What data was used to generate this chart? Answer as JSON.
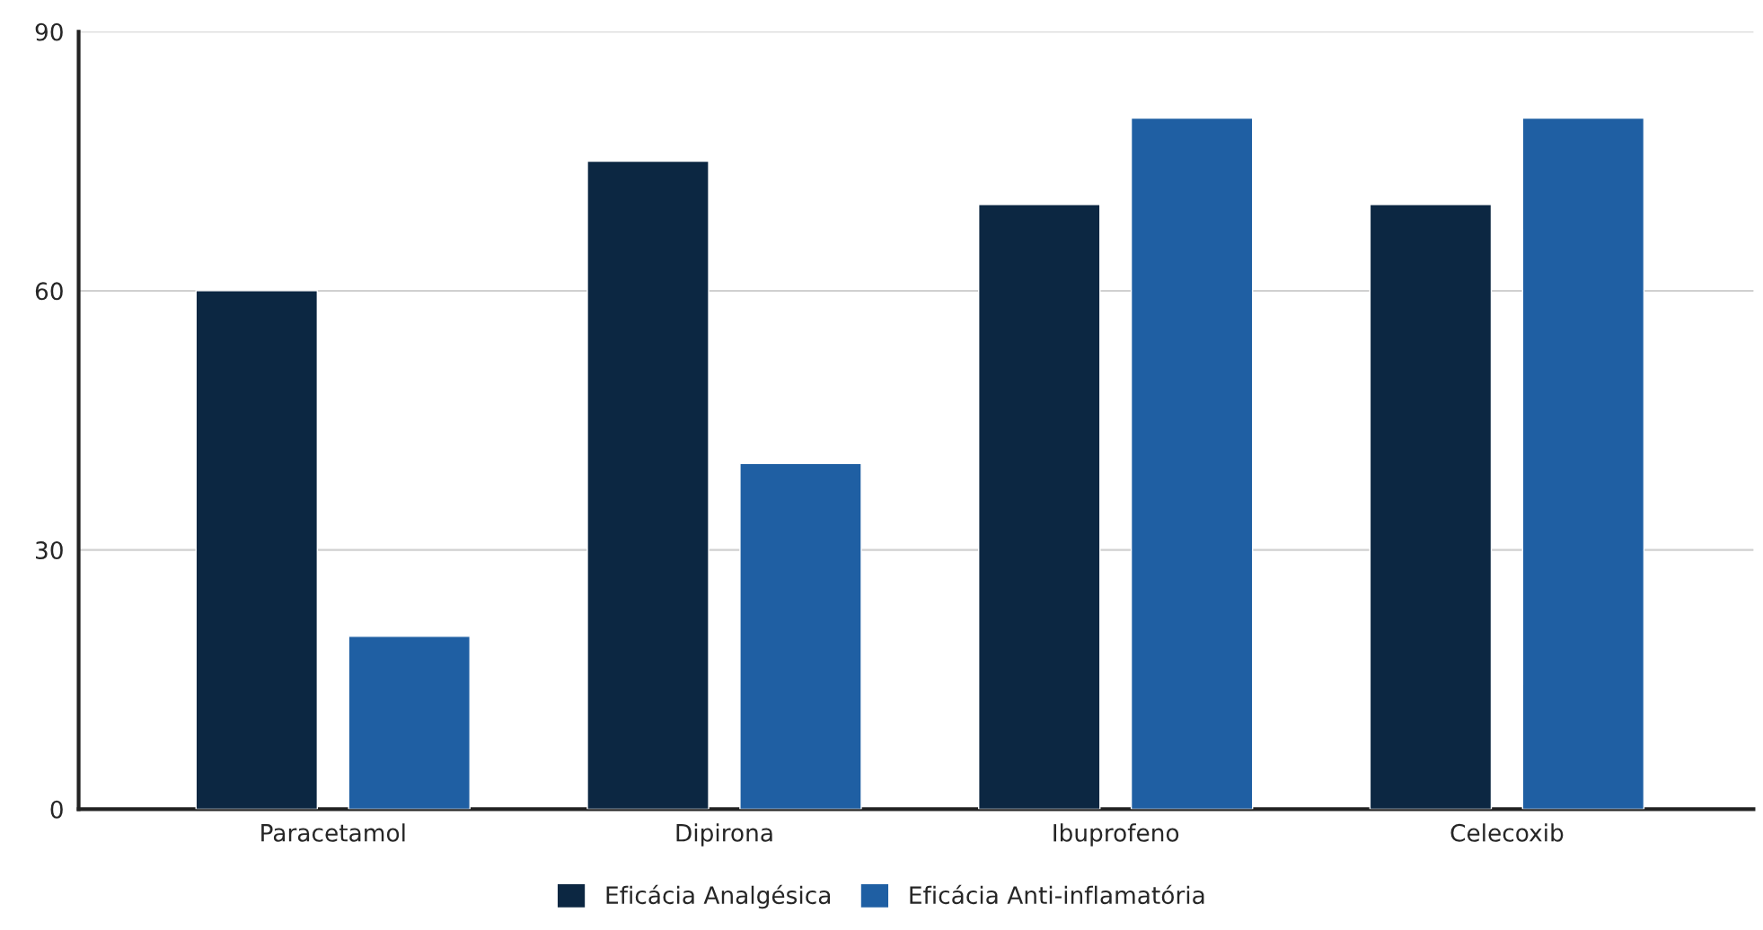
{
  "chart_data": {
    "type": "bar",
    "categories": [
      "Paracetamol",
      "Dipirona",
      "Ibuprofeno",
      "Celecoxib"
    ],
    "series": [
      {
        "name": "Eficácia Analgésica",
        "color": "#0c2742",
        "values": [
          60,
          75,
          70,
          70
        ]
      },
      {
        "name": "Eficácia Anti-inflamatória",
        "color": "#1f5fa3",
        "values": [
          20,
          40,
          80,
          80
        ]
      }
    ],
    "ylim": [
      0,
      90
    ],
    "yticks": [
      0,
      30,
      60,
      90
    ],
    "grid": "y",
    "legend": "bottom"
  }
}
